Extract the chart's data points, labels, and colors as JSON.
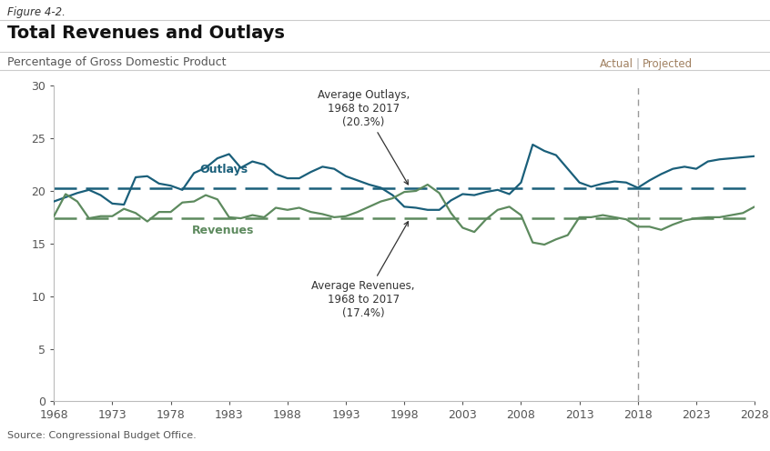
{
  "figure_label": "Figure 4-2.",
  "title": "Total Revenues and Outlays",
  "subtitle": "Percentage of Gross Domestic Product",
  "source": "Source: Congressional Budget Office.",
  "actual_label": "Actual",
  "projected_label": "Projected",
  "divider_year": 2018,
  "avg_outlays": 20.3,
  "avg_revenues": 17.4,
  "avg_outlays_label": "Average Outlays,\n1968 to 2017\n(20.3%)",
  "avg_revenues_label": "Average Revenues,\n1968 to 2017\n(17.4%)",
  "outlays_label": "Outlays",
  "revenues_label": "Revenues",
  "outlays_color": "#1a5f7a",
  "revenues_color": "#5d8a5e",
  "divider_color": "#aaaaaa",
  "background_color": "#ffffff",
  "ylim": [
    0,
    30
  ],
  "yticks": [
    0,
    5,
    10,
    15,
    20,
    25,
    30
  ],
  "xticks": [
    1968,
    1973,
    1978,
    1983,
    1988,
    1993,
    1998,
    2003,
    2008,
    2013,
    2018,
    2023,
    2028
  ],
  "years": [
    1968,
    1969,
    1970,
    1971,
    1972,
    1973,
    1974,
    1975,
    1976,
    1977,
    1978,
    1979,
    1980,
    1981,
    1982,
    1983,
    1984,
    1985,
    1986,
    1987,
    1988,
    1989,
    1990,
    1991,
    1992,
    1993,
    1994,
    1995,
    1996,
    1997,
    1998,
    1999,
    2000,
    2001,
    2002,
    2003,
    2004,
    2005,
    2006,
    2007,
    2008,
    2009,
    2010,
    2011,
    2012,
    2013,
    2014,
    2015,
    2016,
    2017,
    2018,
    2019,
    2020,
    2021,
    2022,
    2023,
    2024,
    2025,
    2026,
    2027,
    2028
  ],
  "outlays": [
    19.0,
    19.4,
    19.8,
    20.1,
    19.6,
    18.8,
    18.7,
    21.3,
    21.4,
    20.7,
    20.5,
    20.1,
    21.7,
    22.2,
    23.1,
    23.5,
    22.2,
    22.8,
    22.5,
    21.6,
    21.2,
    21.2,
    21.8,
    22.3,
    22.1,
    21.4,
    21.0,
    20.6,
    20.3,
    19.6,
    18.5,
    18.4,
    18.2,
    18.2,
    19.1,
    19.7,
    19.6,
    19.9,
    20.1,
    19.7,
    20.8,
    24.4,
    23.8,
    23.4,
    22.1,
    20.8,
    20.4,
    20.7,
    20.9,
    20.8,
    20.3,
    21.0,
    21.6,
    22.1,
    22.3,
    22.1,
    22.8,
    23.0,
    23.1,
    23.2,
    23.3
  ],
  "revenues": [
    17.6,
    19.7,
    19.0,
    17.4,
    17.6,
    17.6,
    18.3,
    17.9,
    17.1,
    18.0,
    18.0,
    18.9,
    19.0,
    19.6,
    19.2,
    17.5,
    17.4,
    17.7,
    17.5,
    18.4,
    18.2,
    18.4,
    18.0,
    17.8,
    17.5,
    17.6,
    18.0,
    18.5,
    19.0,
    19.3,
    19.9,
    20.0,
    20.6,
    19.8,
    17.9,
    16.5,
    16.1,
    17.3,
    18.2,
    18.5,
    17.7,
    15.1,
    14.9,
    15.4,
    15.8,
    17.5,
    17.5,
    17.7,
    17.5,
    17.3,
    16.6,
    16.6,
    16.3,
    16.8,
    17.2,
    17.4,
    17.5,
    17.5,
    17.7,
    17.9,
    18.5
  ],
  "actual_projected_color": "#a08060",
  "spine_color": "#bbbbbb",
  "tick_color": "#555555",
  "label_fontsize": 9,
  "annotation_fontsize": 8.5,
  "source_fontsize": 8,
  "title_fontsize": 14,
  "fig_label_fontsize": 8.5,
  "subtitle_fontsize": 9
}
